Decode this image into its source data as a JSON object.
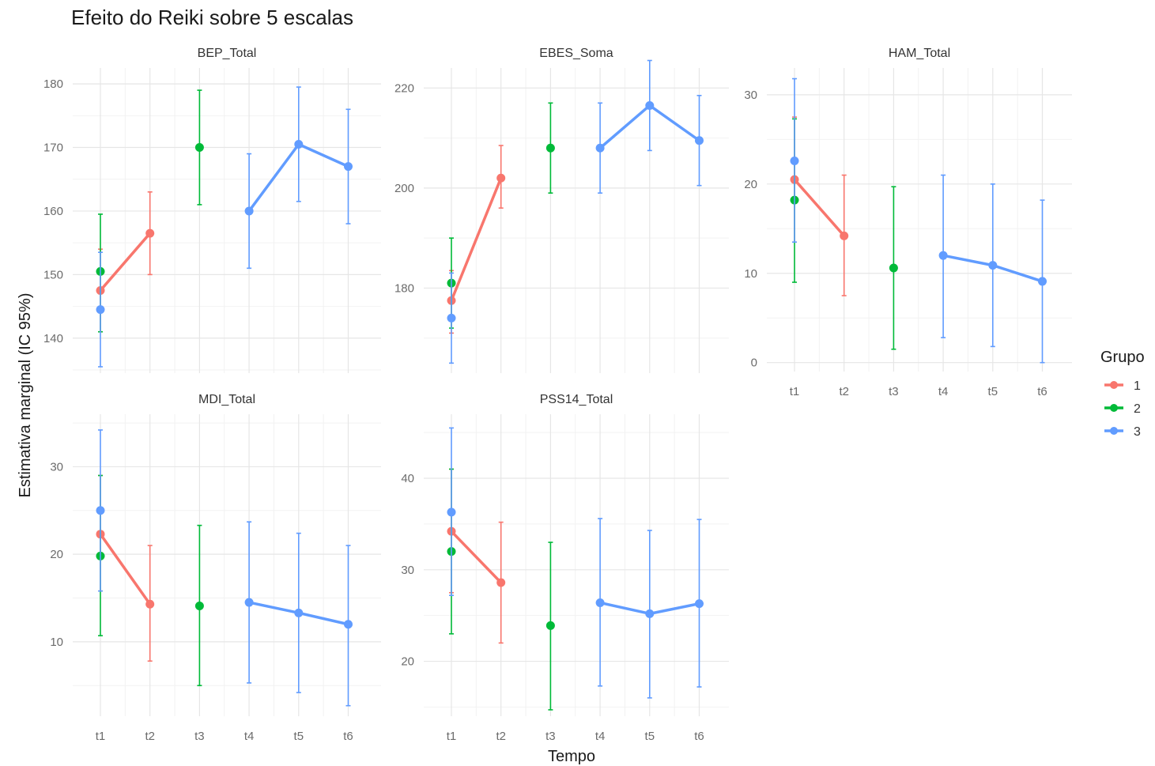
{
  "chart_data": {
    "type": "line",
    "title": "Efeito do Reiki sobre 5 escalas",
    "xlabel": "Tempo",
    "ylabel": "Estimativa marginal (IC 95%)",
    "x_categories": [
      "t1",
      "t2",
      "t3",
      "t4",
      "t5",
      "t6"
    ],
    "legend": {
      "title": "Grupo",
      "position": "right",
      "entries": [
        {
          "label": "1",
          "color": "#F8766D"
        },
        {
          "label": "2",
          "color": "#00BA38"
        },
        {
          "label": "3",
          "color": "#619CFF"
        }
      ]
    },
    "grid": true,
    "panels": [
      {
        "name": "BEP_Total",
        "ylim": [
          134.5,
          182.5
        ],
        "yticks": [
          140,
          150,
          160,
          170,
          180
        ],
        "series": [
          {
            "group": "1",
            "points": [
              {
                "x": "t1",
                "y": 147.5,
                "lo": 141,
                "hi": 154
              },
              {
                "x": "t2",
                "y": 156.5,
                "lo": 150,
                "hi": 163
              }
            ]
          },
          {
            "group": "2",
            "points": [
              {
                "x": "t1",
                "y": 150.5,
                "lo": 141,
                "hi": 159.5
              },
              {
                "x": "t3",
                "y": 170,
                "lo": 161,
                "hi": 179
              }
            ]
          },
          {
            "group": "3",
            "points": [
              {
                "x": "t1",
                "y": 144.5,
                "lo": 135.5,
                "hi": 153.5
              },
              {
                "x": "t4",
                "y": 160,
                "lo": 151,
                "hi": 169
              },
              {
                "x": "t5",
                "y": 170.5,
                "lo": 161.5,
                "hi": 179.5
              },
              {
                "x": "t6",
                "y": 167,
                "lo": 158,
                "hi": 176
              }
            ]
          }
        ]
      },
      {
        "name": "EBES_Soma",
        "ylim": [
          163,
          224
        ],
        "yticks": [
          180,
          200,
          220
        ],
        "series": [
          {
            "group": "1",
            "points": [
              {
                "x": "t1",
                "y": 177.5,
                "lo": 171,
                "hi": 183.5
              },
              {
                "x": "t2",
                "y": 202,
                "lo": 196,
                "hi": 208.5
              }
            ]
          },
          {
            "group": "2",
            "points": [
              {
                "x": "t1",
                "y": 181,
                "lo": 172,
                "hi": 190
              },
              {
                "x": "t3",
                "y": 208,
                "lo": 199,
                "hi": 217
              }
            ]
          },
          {
            "group": "3",
            "points": [
              {
                "x": "t1",
                "y": 174,
                "lo": 165,
                "hi": 183
              },
              {
                "x": "t4",
                "y": 208,
                "lo": 199,
                "hi": 217
              },
              {
                "x": "t5",
                "y": 216.5,
                "lo": 207.5,
                "hi": 225.5
              },
              {
                "x": "t6",
                "y": 209.5,
                "lo": 200.5,
                "hi": 218.5
              }
            ]
          }
        ]
      },
      {
        "name": "HAM_Total",
        "ylim": [
          -1,
          33
        ],
        "yticks": [
          0,
          10,
          20,
          30
        ],
        "series": [
          {
            "group": "1",
            "points": [
              {
                "x": "t1",
                "y": 20.5,
                "lo": 13.5,
                "hi": 27.5
              },
              {
                "x": "t2",
                "y": 14.2,
                "lo": 7.5,
                "hi": 21
              }
            ]
          },
          {
            "group": "2",
            "points": [
              {
                "x": "t1",
                "y": 18.2,
                "lo": 9,
                "hi": 27.3
              },
              {
                "x": "t3",
                "y": 10.6,
                "lo": 1.5,
                "hi": 19.7
              }
            ]
          },
          {
            "group": "3",
            "points": [
              {
                "x": "t1",
                "y": 22.6,
                "lo": 13.5,
                "hi": 31.8
              },
              {
                "x": "t4",
                "y": 12,
                "lo": 2.8,
                "hi": 21
              },
              {
                "x": "t5",
                "y": 10.9,
                "lo": 1.8,
                "hi": 20
              },
              {
                "x": "t6",
                "y": 9.1,
                "lo": 0,
                "hi": 18.2
              }
            ]
          }
        ]
      },
      {
        "name": "MDI_Total",
        "ylim": [
          1.5,
          36
        ],
        "yticks": [
          10,
          20,
          30
        ],
        "series": [
          {
            "group": "1",
            "points": [
              {
                "x": "t1",
                "y": 22.3,
                "lo": 15.8,
                "hi": 29
              },
              {
                "x": "t2",
                "y": 14.3,
                "lo": 7.8,
                "hi": 21
              }
            ]
          },
          {
            "group": "2",
            "points": [
              {
                "x": "t1",
                "y": 19.8,
                "lo": 10.7,
                "hi": 29
              },
              {
                "x": "t3",
                "y": 14.1,
                "lo": 5,
                "hi": 23.3
              }
            ]
          },
          {
            "group": "3",
            "points": [
              {
                "x": "t1",
                "y": 25,
                "lo": 15.8,
                "hi": 34.2
              },
              {
                "x": "t4",
                "y": 14.5,
                "lo": 5.3,
                "hi": 23.7
              },
              {
                "x": "t5",
                "y": 13.3,
                "lo": 4.2,
                "hi": 22.4
              },
              {
                "x": "t6",
                "y": 12,
                "lo": 2.7,
                "hi": 21
              }
            ]
          }
        ]
      },
      {
        "name": "PSS14_Total",
        "ylim": [
          14,
          47
        ],
        "yticks": [
          20,
          30,
          40
        ],
        "series": [
          {
            "group": "1",
            "points": [
              {
                "x": "t1",
                "y": 34.2,
                "lo": 27.5,
                "hi": 41
              },
              {
                "x": "t2",
                "y": 28.6,
                "lo": 22,
                "hi": 35.2
              }
            ]
          },
          {
            "group": "2",
            "points": [
              {
                "x": "t1",
                "y": 32,
                "lo": 23,
                "hi": 41
              },
              {
                "x": "t3",
                "y": 23.9,
                "lo": 14.7,
                "hi": 33
              }
            ]
          },
          {
            "group": "3",
            "points": [
              {
                "x": "t1",
                "y": 36.3,
                "lo": 27.2,
                "hi": 45.5
              },
              {
                "x": "t4",
                "y": 26.4,
                "lo": 17.3,
                "hi": 35.6
              },
              {
                "x": "t5",
                "y": 25.2,
                "lo": 16,
                "hi": 34.3
              },
              {
                "x": "t6",
                "y": 26.3,
                "lo": 17.2,
                "hi": 35.5
              }
            ]
          }
        ]
      }
    ]
  }
}
